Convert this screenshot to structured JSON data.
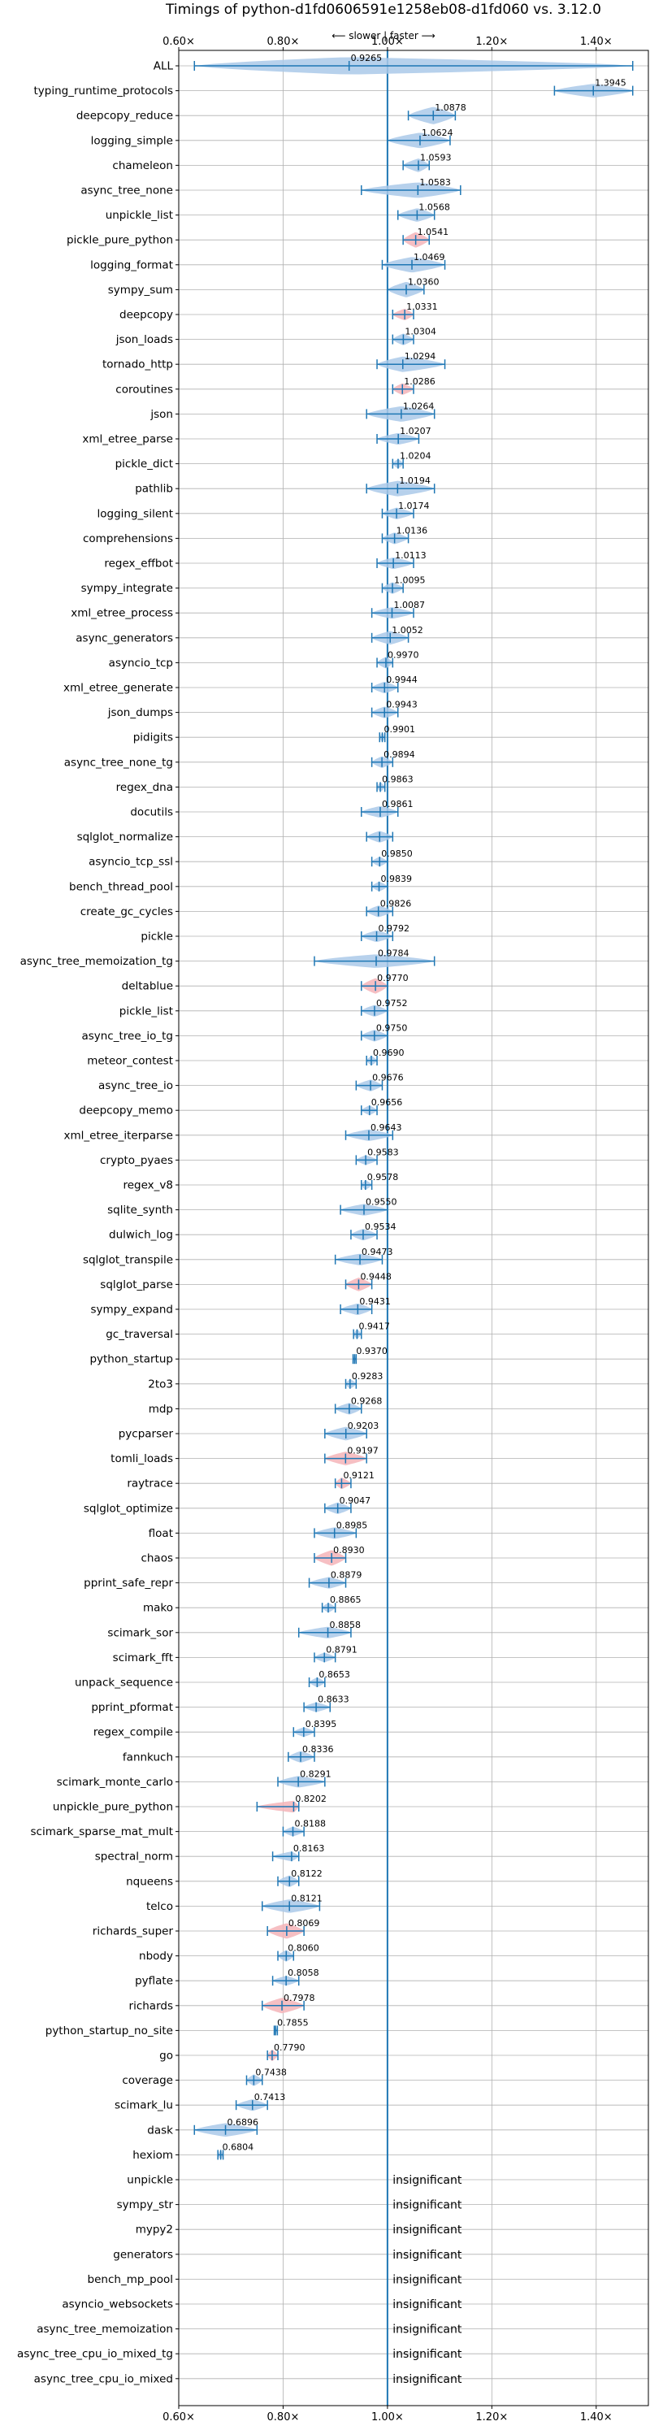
{
  "chart_data": {
    "type": "violin",
    "title": "Timings of python-d1fd0606591e1258eb08-d1fd060 vs. 3.12.0",
    "direction_note": "⟵ slower | faster ⟶",
    "xlim": [
      0.6,
      1.5
    ],
    "x_ticks": [
      0.6,
      0.8,
      1.0,
      1.2,
      1.4
    ],
    "x_tick_labels": [
      "0.60×",
      "0.80×",
      "1.00×",
      "1.20×",
      "1.40×"
    ],
    "reference_line": 1.0,
    "colors": {
      "normal": "#aac9e9",
      "highlight": "#f4b4b8",
      "line": "#1f77b4",
      "grid": "#b0b0b0"
    },
    "insignificant_text": "insignificant",
    "benchmarks": [
      {
        "name": "ALL",
        "value": 0.9265,
        "label": "0.9265",
        "lo": 0.63,
        "hi": 1.47,
        "width": 0.9,
        "hl": false
      },
      {
        "name": "typing_runtime_protocols",
        "value": 1.3945,
        "label": "1.3945",
        "lo": 1.32,
        "hi": 1.47,
        "width": 0.7,
        "hl": false
      },
      {
        "name": "deepcopy_reduce",
        "value": 1.0878,
        "label": "1.0878",
        "lo": 1.04,
        "hi": 1.13,
        "width": 0.9,
        "hl": false
      },
      {
        "name": "logging_simple",
        "value": 1.0624,
        "label": "1.0624",
        "lo": 1.0,
        "hi": 1.12,
        "width": 0.8,
        "hl": false
      },
      {
        "name": "chameleon",
        "value": 1.0593,
        "label": "1.0593",
        "lo": 1.03,
        "hi": 1.08,
        "width": 0.7,
        "hl": false
      },
      {
        "name": "async_tree_none",
        "value": 1.0583,
        "label": "1.0583",
        "lo": 0.95,
        "hi": 1.14,
        "width": 0.8,
        "hl": false
      },
      {
        "name": "unpickle_list",
        "value": 1.0568,
        "label": "1.0568",
        "lo": 1.02,
        "hi": 1.09,
        "width": 0.7,
        "hl": false
      },
      {
        "name": "pickle_pure_python",
        "value": 1.0541,
        "label": "1.0541",
        "lo": 1.03,
        "hi": 1.08,
        "width": 0.8,
        "hl": true
      },
      {
        "name": "logging_format",
        "value": 1.0469,
        "label": "1.0469",
        "lo": 0.99,
        "hi": 1.11,
        "width": 0.8,
        "hl": false
      },
      {
        "name": "sympy_sum",
        "value": 1.036,
        "label": "1.0360",
        "lo": 1.0,
        "hi": 1.07,
        "width": 0.8,
        "hl": false
      },
      {
        "name": "deepcopy",
        "value": 1.0331,
        "label": "1.0331",
        "lo": 1.01,
        "hi": 1.05,
        "width": 0.6,
        "hl": true
      },
      {
        "name": "json_loads",
        "value": 1.0304,
        "label": "1.0304",
        "lo": 1.01,
        "hi": 1.05,
        "width": 0.6,
        "hl": false
      },
      {
        "name": "tornado_http",
        "value": 1.0294,
        "label": "1.0294",
        "lo": 0.98,
        "hi": 1.11,
        "width": 0.8,
        "hl": false
      },
      {
        "name": "coroutines",
        "value": 1.0286,
        "label": "1.0286",
        "lo": 1.01,
        "hi": 1.05,
        "width": 0.6,
        "hl": true
      },
      {
        "name": "json",
        "value": 1.0264,
        "label": "1.0264",
        "lo": 0.96,
        "hi": 1.09,
        "width": 0.8,
        "hl": false
      },
      {
        "name": "xml_etree_parse",
        "value": 1.0207,
        "label": "1.0207",
        "lo": 0.98,
        "hi": 1.06,
        "width": 0.6,
        "hl": false
      },
      {
        "name": "pickle_dict",
        "value": 1.0204,
        "label": "1.0204",
        "lo": 1.01,
        "hi": 1.03,
        "width": 0.5,
        "hl": false
      },
      {
        "name": "pathlib",
        "value": 1.0194,
        "label": "1.0194",
        "lo": 0.96,
        "hi": 1.09,
        "width": 0.8,
        "hl": false
      },
      {
        "name": "logging_silent",
        "value": 1.0174,
        "label": "1.0174",
        "lo": 0.99,
        "hi": 1.05,
        "width": 0.6,
        "hl": false
      },
      {
        "name": "comprehensions",
        "value": 1.0136,
        "label": "1.0136",
        "lo": 0.99,
        "hi": 1.04,
        "width": 0.6,
        "hl": false
      },
      {
        "name": "regex_effbot",
        "value": 1.0113,
        "label": "1.0113",
        "lo": 0.98,
        "hi": 1.05,
        "width": 0.6,
        "hl": false
      },
      {
        "name": "sympy_integrate",
        "value": 1.0095,
        "label": "1.0095",
        "lo": 0.99,
        "hi": 1.03,
        "width": 0.6,
        "hl": false
      },
      {
        "name": "xml_etree_process",
        "value": 1.0087,
        "label": "1.0087",
        "lo": 0.97,
        "hi": 1.05,
        "width": 0.6,
        "hl": false
      },
      {
        "name": "async_generators",
        "value": 1.0052,
        "label": "1.0052",
        "lo": 0.97,
        "hi": 1.04,
        "width": 0.7,
        "hl": false
      },
      {
        "name": "asyncio_tcp",
        "value": 0.997,
        "label": "0.9970",
        "lo": 0.98,
        "hi": 1.01,
        "width": 0.6,
        "hl": false
      },
      {
        "name": "xml_etree_generate",
        "value": 0.9944,
        "label": "0.9944",
        "lo": 0.97,
        "hi": 1.02,
        "width": 0.6,
        "hl": false
      },
      {
        "name": "json_dumps",
        "value": 0.9943,
        "label": "0.9943",
        "lo": 0.97,
        "hi": 1.02,
        "width": 0.6,
        "hl": false
      },
      {
        "name": "pidigits",
        "value": 0.9901,
        "label": "0.9901",
        "lo": 0.985,
        "hi": 0.995,
        "width": 0.5,
        "hl": false
      },
      {
        "name": "async_tree_none_tg",
        "value": 0.9894,
        "label": "0.9894",
        "lo": 0.97,
        "hi": 1.01,
        "width": 0.6,
        "hl": false
      },
      {
        "name": "regex_dna",
        "value": 0.9863,
        "label": "0.9863",
        "lo": 0.98,
        "hi": 0.995,
        "width": 0.5,
        "hl": false
      },
      {
        "name": "docutils",
        "value": 0.9861,
        "label": "0.9861",
        "lo": 0.95,
        "hi": 1.02,
        "width": 0.6,
        "hl": false
      },
      {
        "name": "sqlglot_normalize",
        "value": 0.985,
        "label": "",
        "lo": 0.96,
        "hi": 1.01,
        "width": 0.6,
        "hl": false
      },
      {
        "name": "asyncio_tcp_ssl",
        "value": 0.985,
        "label": "0.9850",
        "lo": 0.97,
        "hi": 1.0,
        "width": 0.5,
        "hl": false
      },
      {
        "name": "bench_thread_pool",
        "value": 0.9839,
        "label": "0.9839",
        "lo": 0.97,
        "hi": 1.0,
        "width": 0.5,
        "hl": false
      },
      {
        "name": "create_gc_cycles",
        "value": 0.9826,
        "label": "0.9826",
        "lo": 0.96,
        "hi": 1.01,
        "width": 0.6,
        "hl": false
      },
      {
        "name": "pickle",
        "value": 0.9792,
        "label": "0.9792",
        "lo": 0.95,
        "hi": 1.01,
        "width": 0.6,
        "hl": false
      },
      {
        "name": "async_tree_memoization_tg",
        "value": 0.9784,
        "label": "0.9784",
        "lo": 0.86,
        "hi": 1.09,
        "width": 0.7,
        "hl": false
      },
      {
        "name": "deltablue",
        "value": 0.977,
        "label": "0.9770",
        "lo": 0.95,
        "hi": 1.0,
        "width": 0.8,
        "hl": true
      },
      {
        "name": "pickle_list",
        "value": 0.9752,
        "label": "0.9752",
        "lo": 0.95,
        "hi": 1.0,
        "width": 0.6,
        "hl": false
      },
      {
        "name": "async_tree_io_tg",
        "value": 0.975,
        "label": "0.9750",
        "lo": 0.95,
        "hi": 1.0,
        "width": 0.6,
        "hl": false
      },
      {
        "name": "meteor_contest",
        "value": 0.969,
        "label": "0.9690",
        "lo": 0.96,
        "hi": 0.98,
        "width": 0.5,
        "hl": false
      },
      {
        "name": "async_tree_io",
        "value": 0.9676,
        "label": "0.9676",
        "lo": 0.94,
        "hi": 0.99,
        "width": 0.6,
        "hl": false
      },
      {
        "name": "deepcopy_memo",
        "value": 0.9656,
        "label": "0.9656",
        "lo": 0.95,
        "hi": 0.98,
        "width": 0.5,
        "hl": false
      },
      {
        "name": "xml_etree_iterparse",
        "value": 0.9643,
        "label": "0.9643",
        "lo": 0.92,
        "hi": 1.01,
        "width": 0.6,
        "hl": false
      },
      {
        "name": "crypto_pyaes",
        "value": 0.9583,
        "label": "0.9583",
        "lo": 0.94,
        "hi": 0.98,
        "width": 0.5,
        "hl": false
      },
      {
        "name": "regex_v8",
        "value": 0.9578,
        "label": "0.9578",
        "lo": 0.95,
        "hi": 0.97,
        "width": 0.5,
        "hl": false
      },
      {
        "name": "sqlite_synth",
        "value": 0.955,
        "label": "0.9550",
        "lo": 0.91,
        "hi": 1.0,
        "width": 0.6,
        "hl": false
      },
      {
        "name": "dulwich_log",
        "value": 0.9534,
        "label": "0.9534",
        "lo": 0.93,
        "hi": 0.98,
        "width": 0.6,
        "hl": false
      },
      {
        "name": "sqlglot_transpile",
        "value": 0.9473,
        "label": "0.9473",
        "lo": 0.9,
        "hi": 0.99,
        "width": 0.6,
        "hl": false
      },
      {
        "name": "sqlglot_parse",
        "value": 0.9448,
        "label": "0.9448",
        "lo": 0.92,
        "hi": 0.97,
        "width": 0.7,
        "hl": true
      },
      {
        "name": "sympy_expand",
        "value": 0.9431,
        "label": "0.9431",
        "lo": 0.91,
        "hi": 0.97,
        "width": 0.6,
        "hl": false
      },
      {
        "name": "gc_traversal",
        "value": 0.9417,
        "label": "0.9417",
        "lo": 0.935,
        "hi": 0.95,
        "width": 0.5,
        "hl": false
      },
      {
        "name": "python_startup",
        "value": 0.937,
        "label": "0.9370",
        "lo": 0.934,
        "hi": 0.94,
        "width": 0.4,
        "hl": false
      },
      {
        "name": "2to3",
        "value": 0.9283,
        "label": "0.9283",
        "lo": 0.92,
        "hi": 0.94,
        "width": 0.5,
        "hl": false
      },
      {
        "name": "mdp",
        "value": 0.9268,
        "label": "0.9268",
        "lo": 0.9,
        "hi": 0.95,
        "width": 0.6,
        "hl": false
      },
      {
        "name": "pycparser",
        "value": 0.9203,
        "label": "0.9203",
        "lo": 0.88,
        "hi": 0.96,
        "width": 0.7,
        "hl": false
      },
      {
        "name": "tomli_loads",
        "value": 0.9197,
        "label": "0.9197",
        "lo": 0.88,
        "hi": 0.96,
        "width": 0.7,
        "hl": true
      },
      {
        "name": "raytrace",
        "value": 0.9121,
        "label": "0.9121",
        "lo": 0.9,
        "hi": 0.93,
        "width": 0.6,
        "hl": true
      },
      {
        "name": "sqlglot_optimize",
        "value": 0.9047,
        "label": "0.9047",
        "lo": 0.88,
        "hi": 0.93,
        "width": 0.6,
        "hl": false
      },
      {
        "name": "float",
        "value": 0.8985,
        "label": "0.8985",
        "lo": 0.86,
        "hi": 0.94,
        "width": 0.6,
        "hl": false
      },
      {
        "name": "chaos",
        "value": 0.893,
        "label": "0.8930",
        "lo": 0.86,
        "hi": 0.92,
        "width": 0.8,
        "hl": true
      },
      {
        "name": "pprint_safe_repr",
        "value": 0.8879,
        "label": "0.8879",
        "lo": 0.85,
        "hi": 0.92,
        "width": 0.6,
        "hl": false
      },
      {
        "name": "mako",
        "value": 0.8865,
        "label": "0.8865",
        "lo": 0.875,
        "hi": 0.9,
        "width": 0.5,
        "hl": false
      },
      {
        "name": "scimark_sor",
        "value": 0.8858,
        "label": "0.8858",
        "lo": 0.83,
        "hi": 0.93,
        "width": 0.6,
        "hl": false
      },
      {
        "name": "scimark_fft",
        "value": 0.8791,
        "label": "0.8791",
        "lo": 0.86,
        "hi": 0.9,
        "width": 0.5,
        "hl": false
      },
      {
        "name": "unpack_sequence",
        "value": 0.8653,
        "label": "0.8653",
        "lo": 0.85,
        "hi": 0.88,
        "width": 0.5,
        "hl": false
      },
      {
        "name": "pprint_pformat",
        "value": 0.8633,
        "label": "0.8633",
        "lo": 0.84,
        "hi": 0.89,
        "width": 0.5,
        "hl": false
      },
      {
        "name": "regex_compile",
        "value": 0.8395,
        "label": "0.8395",
        "lo": 0.82,
        "hi": 0.86,
        "width": 0.5,
        "hl": false
      },
      {
        "name": "fannkuch",
        "value": 0.8336,
        "label": "0.8336",
        "lo": 0.81,
        "hi": 0.86,
        "width": 0.6,
        "hl": false
      },
      {
        "name": "scimark_monte_carlo",
        "value": 0.8291,
        "label": "0.8291",
        "lo": 0.79,
        "hi": 0.88,
        "width": 0.6,
        "hl": false
      },
      {
        "name": "unpickle_pure_python",
        "value": 0.8202,
        "label": "0.8202",
        "lo": 0.75,
        "hi": 0.83,
        "width": 0.6,
        "hl": true
      },
      {
        "name": "scimark_sparse_mat_mult",
        "value": 0.8188,
        "label": "0.8188",
        "lo": 0.8,
        "hi": 0.84,
        "width": 0.5,
        "hl": false
      },
      {
        "name": "spectral_norm",
        "value": 0.8163,
        "label": "0.8163",
        "lo": 0.78,
        "hi": 0.83,
        "width": 0.5,
        "hl": false
      },
      {
        "name": "nqueens",
        "value": 0.8122,
        "label": "0.8122",
        "lo": 0.79,
        "hi": 0.83,
        "width": 0.6,
        "hl": false
      },
      {
        "name": "telco",
        "value": 0.8121,
        "label": "0.8121",
        "lo": 0.76,
        "hi": 0.87,
        "width": 0.7,
        "hl": false
      },
      {
        "name": "richards_super",
        "value": 0.8069,
        "label": "0.8069",
        "lo": 0.77,
        "hi": 0.84,
        "width": 0.8,
        "hl": true
      },
      {
        "name": "nbody",
        "value": 0.806,
        "label": "0.8060",
        "lo": 0.79,
        "hi": 0.82,
        "width": 0.6,
        "hl": false
      },
      {
        "name": "pyflate",
        "value": 0.8058,
        "label": "0.8058",
        "lo": 0.78,
        "hi": 0.83,
        "width": 0.5,
        "hl": false
      },
      {
        "name": "richards",
        "value": 0.7978,
        "label": "0.7978",
        "lo": 0.76,
        "hi": 0.84,
        "width": 0.8,
        "hl": true
      },
      {
        "name": "python_startup_no_site",
        "value": 0.7855,
        "label": "0.7855",
        "lo": 0.783,
        "hi": 0.789,
        "width": 0.4,
        "hl": false
      },
      {
        "name": "go",
        "value": 0.779,
        "label": "0.7790",
        "lo": 0.77,
        "hi": 0.79,
        "width": 0.6,
        "hl": true
      },
      {
        "name": "coverage",
        "value": 0.7438,
        "label": "0.7438",
        "lo": 0.73,
        "hi": 0.76,
        "width": 0.6,
        "hl": false
      },
      {
        "name": "scimark_lu",
        "value": 0.7413,
        "label": "0.7413",
        "lo": 0.71,
        "hi": 0.77,
        "width": 0.6,
        "hl": false
      },
      {
        "name": "dask",
        "value": 0.6896,
        "label": "0.6896",
        "lo": 0.63,
        "hi": 0.75,
        "width": 0.7,
        "hl": false
      },
      {
        "name": "hexiom",
        "value": 0.6804,
        "label": "0.6804",
        "lo": 0.675,
        "hi": 0.685,
        "width": 0.5,
        "hl": false
      },
      {
        "name": "unpickle",
        "insignificant": true
      },
      {
        "name": "sympy_str",
        "insignificant": true
      },
      {
        "name": "mypy2",
        "insignificant": true
      },
      {
        "name": "generators",
        "insignificant": true
      },
      {
        "name": "bench_mp_pool",
        "insignificant": true
      },
      {
        "name": "asyncio_websockets",
        "insignificant": true
      },
      {
        "name": "async_tree_memoization",
        "insignificant": true
      },
      {
        "name": "async_tree_cpu_io_mixed_tg",
        "insignificant": true
      },
      {
        "name": "async_tree_cpu_io_mixed",
        "insignificant": true
      }
    ]
  }
}
